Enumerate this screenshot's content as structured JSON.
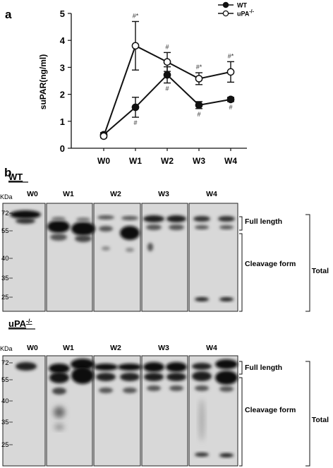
{
  "panel_a": {
    "label": "a",
    "chart_data": {
      "type": "line",
      "categories": [
        "W0",
        "W1",
        "W2",
        "W3",
        "W4"
      ],
      "ylabel": "suPAR(ng/ml)",
      "xlabel": "",
      "ylim": [
        0,
        5
      ],
      "yticks": [
        0,
        1,
        2,
        3,
        4,
        5
      ],
      "legend_position": "top-right",
      "series": [
        {
          "name": "WT",
          "marker": "filled-circle",
          "values": [
            0.5,
            1.52,
            2.72,
            1.6,
            1.81
          ],
          "errors": [
            0.08,
            0.37,
            0.3,
            0.13,
            0.08
          ],
          "annotations": [
            "",
            "#",
            "#",
            "#",
            "#"
          ]
        },
        {
          "name": "uPA",
          "name_sup": "-/-",
          "marker": "open-circle",
          "values": [
            0.45,
            3.8,
            3.2,
            2.58,
            2.83
          ],
          "errors": [
            0.06,
            0.9,
            0.35,
            0.22,
            0.38
          ],
          "annotations": [
            "",
            "#*",
            "#",
            "#*",
            "#*"
          ]
        }
      ]
    }
  },
  "panel_b": {
    "label": "b",
    "kda_label": "KDa",
    "bands": [
      "Full length",
      "Cleavage form"
    ],
    "total_label": "Total",
    "blots": [
      {
        "genotype": "WT",
        "genotype_sup": "",
        "lanes": [
          "W0",
          "W1",
          "W2",
          "W3",
          "W4"
        ],
        "markers": [
          "72",
          "55",
          "40",
          "35",
          "25"
        ]
      },
      {
        "genotype": "uPA",
        "genotype_sup": "-/-",
        "lanes": [
          "W0",
          "W1",
          "W2",
          "W3",
          "W4"
        ],
        "markers": [
          "72",
          "55",
          "40",
          "35",
          "25"
        ]
      }
    ]
  }
}
